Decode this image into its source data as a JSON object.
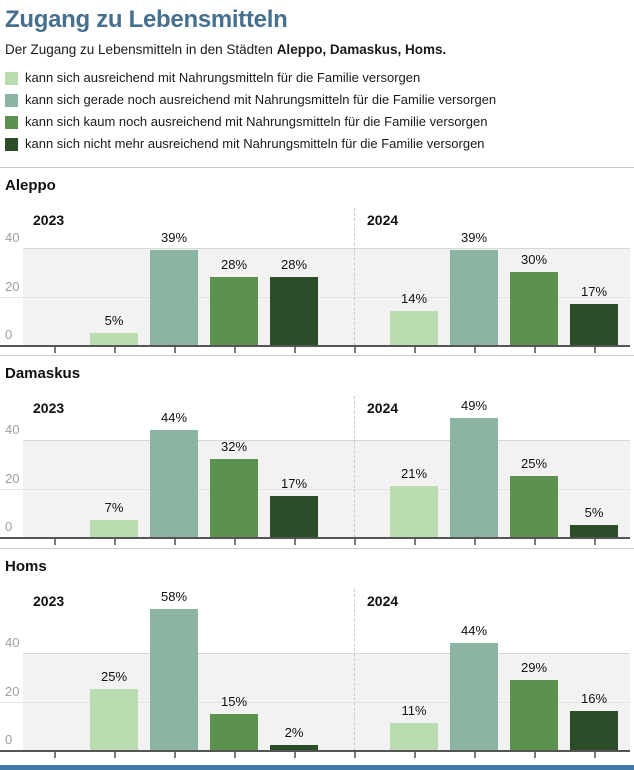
{
  "header": {
    "title": "Zugang zu Lebensmitteln",
    "subtitle_prefix": "Der Zugang zu Lebensmitteln in den Städten ",
    "subtitle_bold": "Aleppo, Damaskus, Homs."
  },
  "legend": {
    "items": [
      {
        "label": "kann sich ausreichend mit Nahrungsmitteln für die Familie versorgen",
        "color": "#b9dcb0"
      },
      {
        "label": "kann sich gerade noch ausreichend mit Nahrungsmitteln für die Familie versorgen",
        "color": "#8bb5a2"
      },
      {
        "label": "kann sich kaum noch ausreichend mit Nahrungsmitteln für die Familie versorgen",
        "color": "#5c9150"
      },
      {
        "label": "kann sich nicht mehr ausreichend mit Nahrungsmitteln für die Familie versorgen",
        "color": "#2b4e28"
      }
    ]
  },
  "chart_data": {
    "type": "bar",
    "title": "Zugang zu Lebensmitteln",
    "subtitle": "Der Zugang zu Lebensmitteln in den Städten Aleppo, Damaskus, Homs.",
    "unit": "%",
    "value_suffix": "%",
    "y_tick_labels": [
      "40",
      "20",
      "0"
    ],
    "y_ticks": [
      40,
      20,
      0
    ],
    "ylim": [
      0,
      60
    ],
    "grid": "horizontal",
    "legend_position": "top",
    "categories": [
      "kann sich ausreichend mit Nahrungsmitteln für die Familie versorgen",
      "kann sich gerade noch ausreichend mit Nahrungsmitteln für die Familie versorgen",
      "kann sich kaum noch ausreichend mit Nahrungsmitteln für die Familie versorgen",
      "kann sich nicht mehr ausreichend mit Nahrungsmitteln für die Familie versorgen"
    ],
    "series_colors": [
      "#b9dcb0",
      "#8bb5a2",
      "#5c9150",
      "#2b4e28"
    ],
    "panels": [
      {
        "city": "Aleppo",
        "groups": [
          {
            "year": "2023",
            "values": [
              5,
              39,
              28,
              28
            ]
          },
          {
            "year": "2024",
            "values": [
              14,
              39,
              30,
              17
            ]
          }
        ]
      },
      {
        "city": "Damaskus",
        "groups": [
          {
            "year": "2023",
            "values": [
              7,
              44,
              32,
              17
            ]
          },
          {
            "year": "2024",
            "values": [
              21,
              49,
              25,
              5
            ]
          }
        ]
      },
      {
        "city": "Homs",
        "groups": [
          {
            "year": "2023",
            "values": [
              25,
              58,
              15,
              2
            ]
          },
          {
            "year": "2024",
            "values": [
              11,
              44,
              29,
              16
            ]
          }
        ]
      }
    ]
  },
  "colors": {
    "title": "#47708e",
    "text": "#1a1a1a",
    "plot_background": "#f2f2f2",
    "gridline": "#d7d7d7",
    "axis_line": "#555555",
    "tick": "#7a7a7a",
    "tick_label": "#9e9e9e",
    "panel_rule": "#c9c9c9",
    "facet_divider": "#cbcbcb",
    "bottom_bar": "#4477aa"
  }
}
